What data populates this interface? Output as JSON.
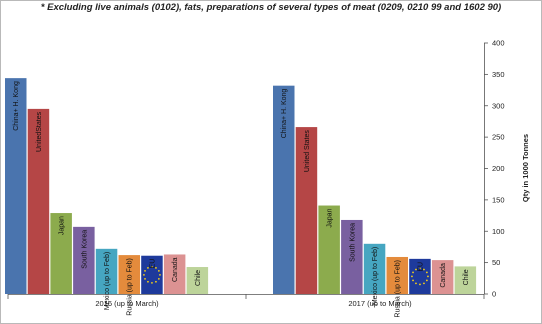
{
  "note": "* Excluding live animals (0102), fats, preparations of several types of meat (0209, 0210 99 and 1602 90)",
  "chart_data": {
    "type": "bar",
    "title": "",
    "xlabel": "",
    "ylabel": "Qty in 1000 Tonnes",
    "ylim": [
      0,
      400
    ],
    "yticks": [
      0,
      50,
      100,
      150,
      200,
      250,
      300,
      350,
      400
    ],
    "y_axis_side": "right",
    "grid": false,
    "legend": "none",
    "categories": [
      "2016 (up to March)",
      "2017 (up to March)"
    ],
    "series": [
      {
        "name": "China+ H. Kong",
        "color": "#4a74ae",
        "values": [
          344,
          332
        ]
      },
      {
        "name": "UnitedStates",
        "color": "#b54646",
        "values": [
          295,
          266
        ]
      },
      {
        "name": "Japan",
        "color": "#8cab4d",
        "values": [
          129,
          141
        ]
      },
      {
        "name": "South Korea",
        "color": "#7960a0",
        "values": [
          107,
          118
        ]
      },
      {
        "name": "Mexico (up to Feb)",
        "color": "#46a6c1",
        "values": [
          72,
          80
        ]
      },
      {
        "name": "Russia (up to Feb)",
        "color": "#e48b3c",
        "values": [
          62,
          59
        ]
      },
      {
        "name": "EU",
        "color": "#1e3a9c",
        "values": [
          61,
          56
        ]
      },
      {
        "name": "Canada",
        "color": "#dc9292",
        "values": [
          63,
          54
        ]
      },
      {
        "name": "Chile",
        "color": "#bdd49a",
        "values": [
          43,
          44
        ]
      }
    ],
    "bar_label_overrides": {
      "UnitedStates": [
        "UnitedStates",
        "United States"
      ],
      "Mexico (up to Feb)": [
        "Mexico (up to Feb)",
        "Mexico (up to Feb)"
      ]
    }
  }
}
